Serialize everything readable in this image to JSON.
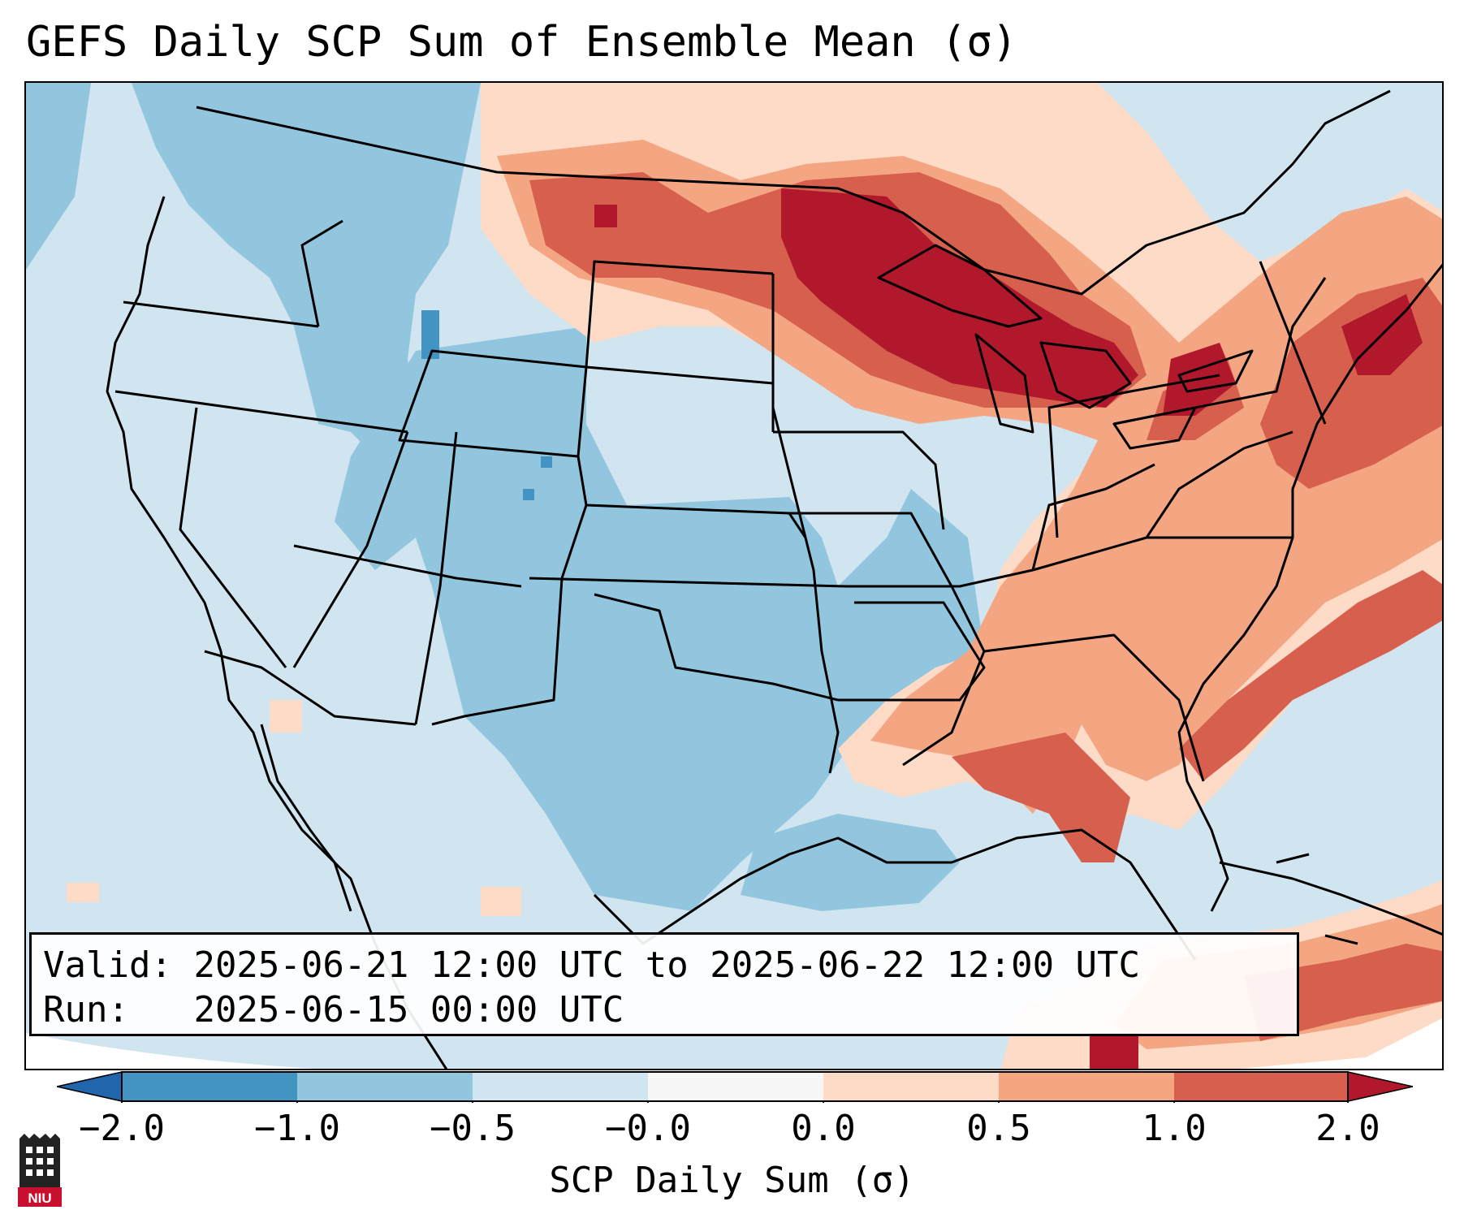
{
  "title": "GEFS Daily SCP Sum of Ensemble Mean (σ)",
  "info": {
    "valid_label": "Valid:",
    "valid_value": "2025-06-21 12:00 UTC to 2025-06-22 12:00 UTC",
    "run_label": "Run:",
    "run_value": "2025-06-15 00:00 UTC"
  },
  "colorbar": {
    "label": "SCP Daily Sum (σ)",
    "ticks": [
      "−2.0",
      "−1.0",
      "−0.5",
      "−0.0",
      "0.0",
      "0.5",
      "1.0",
      "2.0"
    ],
    "colors": {
      "below_min": "#2166ac",
      "bin_neg2_neg1": "#4393c3",
      "bin_neg1_neg05": "#92c5de",
      "bin_neg05_0": "#d1e5f0",
      "bin_0_white": "#f7f7f7",
      "bin_0_05": "#fddbc7",
      "bin_05_1": "#f4a582",
      "bin_1_2": "#d6604d",
      "above_max": "#b2182b"
    }
  },
  "logo": {
    "icon": "niu-logo-icon",
    "text": "NIU"
  }
}
